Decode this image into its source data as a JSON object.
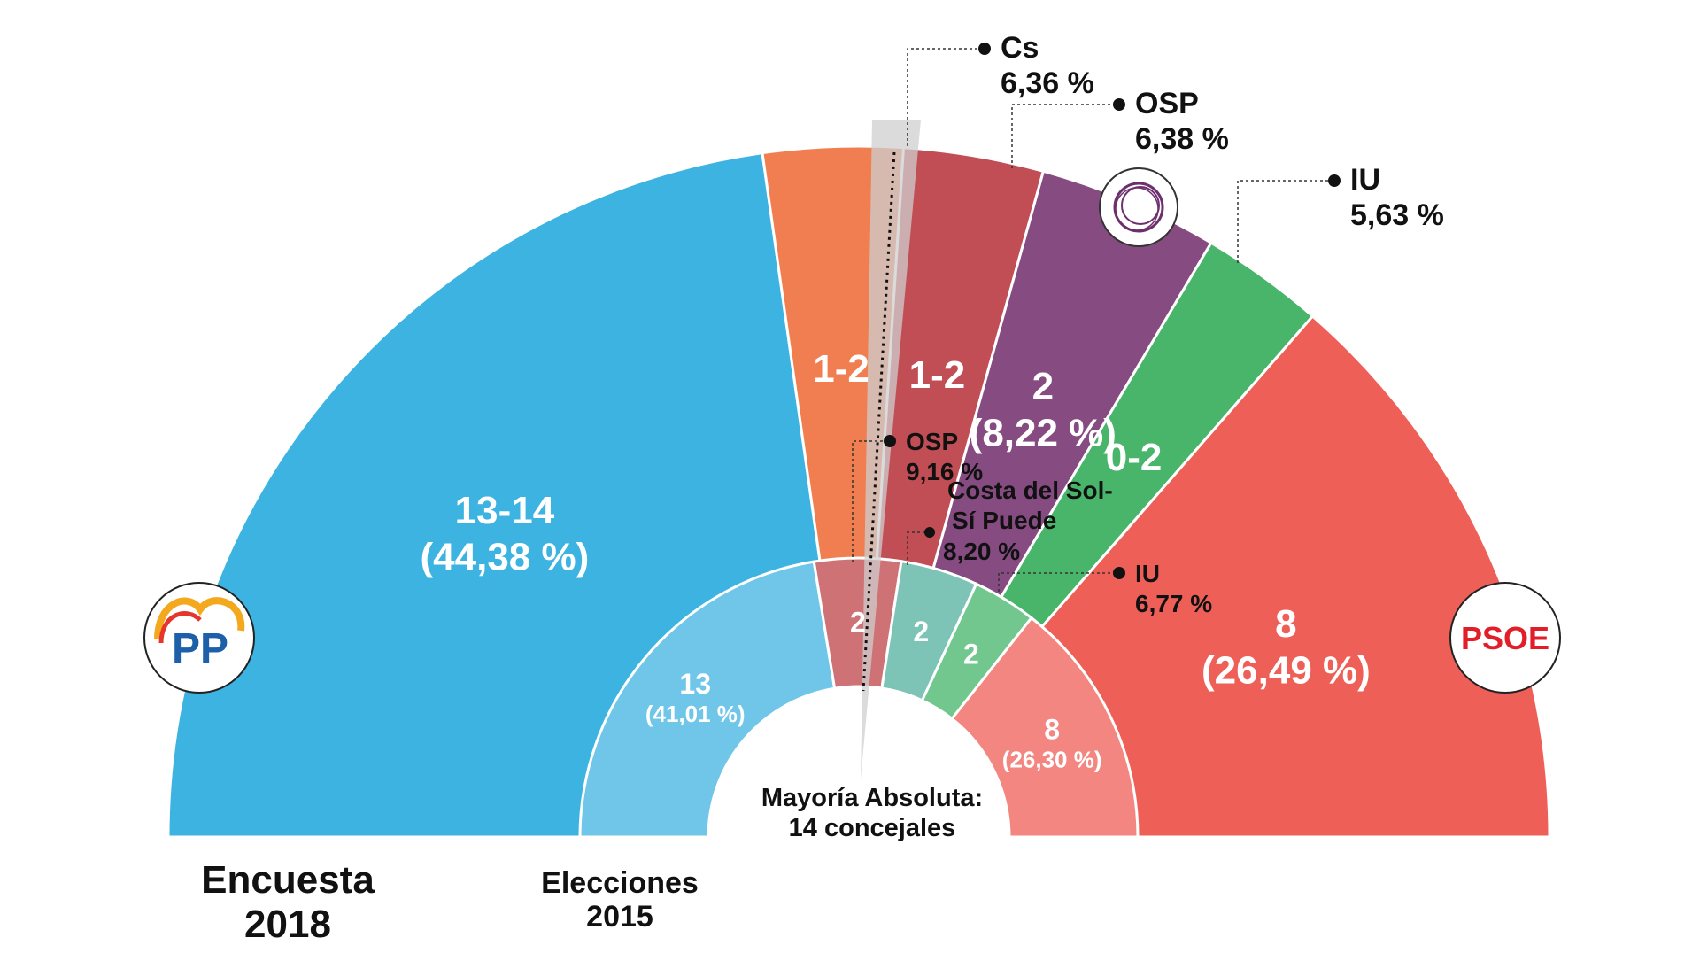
{
  "chart_data": [
    {
      "type": "pie",
      "subtype": "semicircle",
      "title": "Encuesta 2018",
      "title_lines": [
        "Encuesta",
        "2018"
      ],
      "segments": [
        {
          "party": "PP",
          "seats": "13-14",
          "percent": "(44,38 %)",
          "value": 44.38,
          "color": "#3db3e1"
        },
        {
          "party": "Cs",
          "seats": "1-2",
          "percent": "",
          "value": 6.36,
          "color": "#f07e50"
        },
        {
          "party": "OSP",
          "seats": "1-2",
          "percent": "",
          "value": 6.38,
          "color": "#c14e55"
        },
        {
          "party": "Podemos",
          "seats": "2",
          "percent": "(8,22 %)",
          "value": 8.22,
          "color": "#864b80"
        },
        {
          "party": "IU",
          "seats": "0-2",
          "percent": "",
          "value": 5.63,
          "color": "#48b56b"
        },
        {
          "party": "PSOE",
          "seats": "8",
          "percent": "(26,49 %)",
          "value": 26.49,
          "color": "#ee6057"
        }
      ],
      "callouts": [
        {
          "name": "Cs",
          "value": "6,36 %"
        },
        {
          "name": "OSP",
          "value": "6,38 %"
        },
        {
          "name": "IU",
          "value": "5,63 %"
        }
      ]
    },
    {
      "type": "pie",
      "subtype": "semicircle",
      "title": "Elecciones 2015",
      "title_lines": [
        "Elecciones",
        "2015"
      ],
      "segments": [
        {
          "party": "PP",
          "seats": "13",
          "percent": "(41,01 %)",
          "value": 41.01,
          "color": "#6fc6e8"
        },
        {
          "party": "OSP",
          "seats": "2",
          "percent": "",
          "value": 9.16,
          "color": "#cf7276"
        },
        {
          "party": "Costa del Sol-Sí Puede",
          "seats": "2",
          "percent": "",
          "value": 8.2,
          "color": "#7dc4b7"
        },
        {
          "party": "IU",
          "seats": "2",
          "percent": "",
          "value": 6.77,
          "color": "#72c78e"
        },
        {
          "party": "PSOE",
          "seats": "8",
          "percent": "(26,30 %)",
          "value": 26.3,
          "color": "#f38680"
        }
      ],
      "callouts": [
        {
          "name": "OSP",
          "value": "9,16 %"
        },
        {
          "name": "Costa del Sol-\nSí Puede",
          "name_lines": [
            "Costa del Sol-",
            "Sí Puede"
          ],
          "value": "8,20 %"
        },
        {
          "name": "IU",
          "value": "6,77 %"
        }
      ]
    }
  ],
  "majority": {
    "lines": [
      "Mayoría Absoluta:",
      "14 concejales"
    ]
  },
  "logos": {
    "pp": "PP",
    "psoe": "PSOE"
  },
  "icons": {
    "pp": "pp-logo-icon",
    "psoe": "psoe-logo-icon",
    "podemos": "podemos-circle-icon"
  }
}
